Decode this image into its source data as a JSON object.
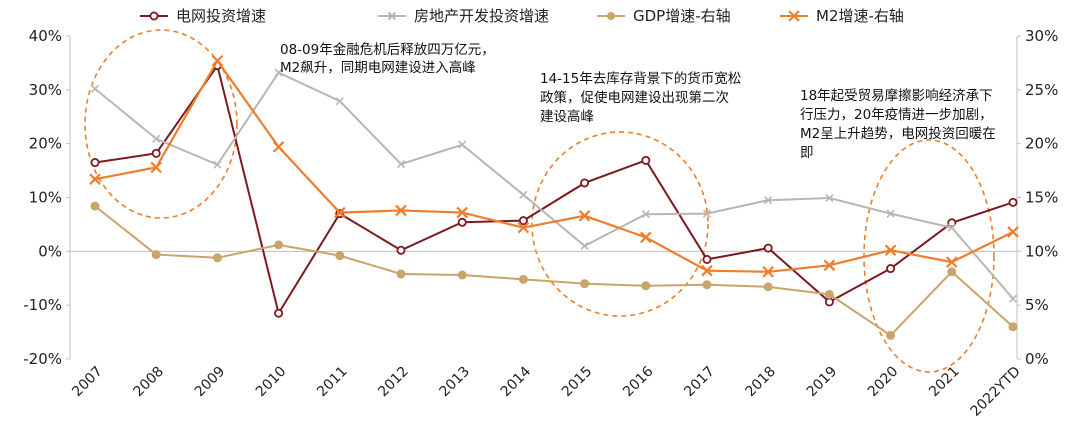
{
  "chart_data": {
    "type": "line",
    "categories": [
      "2007",
      "2008",
      "2009",
      "2010",
      "2011",
      "2012",
      "2013",
      "2014",
      "2015",
      "2016",
      "2017",
      "2018",
      "2019",
      "2020",
      "2021",
      "2022YTD"
    ],
    "y_left": {
      "range": [
        -20,
        40
      ],
      "ticks": [
        "40%",
        "30%",
        "20%",
        "10%",
        "0%",
        "-10%",
        "-20%"
      ],
      "tick_values": [
        40,
        30,
        20,
        10,
        0,
        -10,
        -20
      ]
    },
    "y_right": {
      "range": [
        0,
        30
      ],
      "ticks": [
        "30%",
        "25%",
        "20%",
        "15%",
        "10%",
        "5%",
        "0%"
      ],
      "tick_values": [
        30,
        25,
        20,
        15,
        10,
        5,
        0
      ]
    },
    "grid": false,
    "legend_placement": "top",
    "series": [
      {
        "name": "电网投资增速",
        "axis": "left",
        "color": "#7b1a20",
        "marker": "circle-open",
        "values": [
          16.5,
          18.2,
          34.5,
          -11.5,
          7.0,
          0.2,
          5.4,
          5.7,
          12.7,
          16.9,
          -1.5,
          0.6,
          -9.4,
          -3.2,
          5.3,
          9.1
        ]
      },
      {
        "name": "房地产开发投资增速",
        "axis": "left",
        "color": "#b8b6ae",
        "marker": "x",
        "values": [
          30.2,
          20.9,
          16.1,
          33.2,
          27.9,
          16.2,
          19.8,
          10.5,
          1.0,
          6.9,
          7.0,
          9.5,
          9.9,
          7.0,
          4.4,
          -8.8
        ]
      },
      {
        "name": "GDP增速-右轴",
        "axis": "right",
        "color": "#c8a56a",
        "marker": "circle-filled",
        "values": [
          14.2,
          9.7,
          9.4,
          10.6,
          9.6,
          7.9,
          7.8,
          7.4,
          7.0,
          6.8,
          6.9,
          6.7,
          6.0,
          2.2,
          8.1,
          3.0
        ]
      },
      {
        "name": "M2增速-右轴",
        "axis": "right",
        "color": "#ee7d2c",
        "marker": "x",
        "values": [
          16.7,
          17.8,
          27.7,
          19.7,
          13.6,
          13.8,
          13.6,
          12.2,
          13.3,
          11.3,
          8.2,
          8.1,
          8.7,
          10.1,
          9.0,
          11.8
        ]
      }
    ],
    "annotations": [
      {
        "text": [
          "08-09年金融危机后释放四万亿元，",
          "M2飙升，同期电网建设进入高峰"
        ],
        "spans": [
          "2007",
          "2010"
        ]
      },
      {
        "text": [
          "14-15年去库存背景下的货币宽松",
          "政策，促使电网建设出现第二次",
          "建设高峰"
        ],
        "spans": [
          "2015",
          "2016"
        ]
      },
      {
        "text": [
          "18年起受贸易摩擦影响经济承下",
          "行压力，20年疫情进一步加剧，",
          "M2呈上升趋势，电网投资回暖在",
          "即"
        ],
        "spans": [
          "2020",
          "2022YTD"
        ]
      }
    ]
  }
}
